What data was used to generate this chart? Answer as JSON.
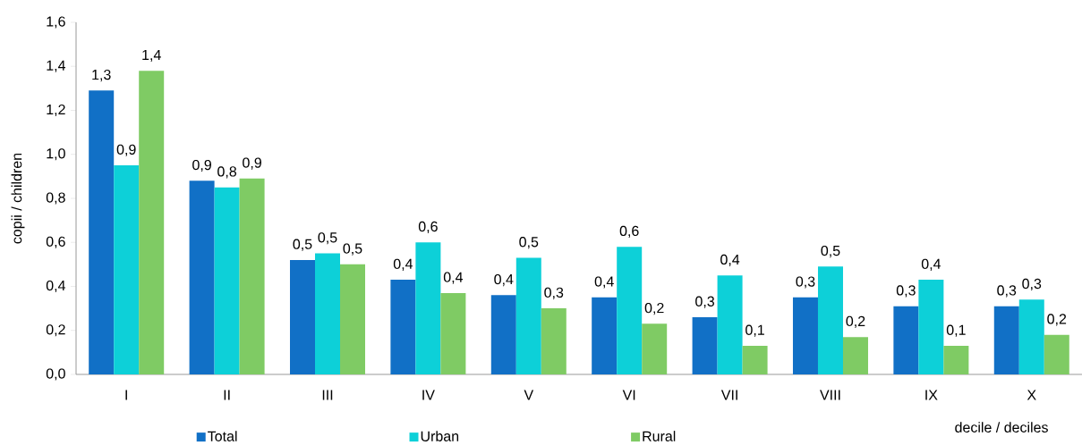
{
  "chart_data": {
    "type": "bar",
    "xlabel": "decile / deciles",
    "ylabel": "copii / children",
    "categories": [
      "I",
      "II",
      "III",
      "IV",
      "V",
      "VI",
      "VII",
      "VIII",
      "IX",
      "X"
    ],
    "series": [
      {
        "name": "Total",
        "color": "#1170c6",
        "values": [
          1.29,
          0.88,
          0.52,
          0.43,
          0.36,
          0.35,
          0.26,
          0.35,
          0.31,
          0.31
        ],
        "value_labels": [
          "1,3",
          "0,9",
          "0,5",
          "0,4",
          "0,4",
          "0,4",
          "0,3",
          "0,3",
          "0,3",
          "0,3"
        ]
      },
      {
        "name": "Urban",
        "color": "#0dd0d8",
        "values": [
          0.95,
          0.85,
          0.55,
          0.6,
          0.53,
          0.58,
          0.45,
          0.49,
          0.43,
          0.34
        ],
        "value_labels": [
          "0,9",
          "0,8",
          "0,5",
          "0,6",
          "0,5",
          "0,6",
          "0,4",
          "0,5",
          "0,4",
          "0,3"
        ]
      },
      {
        "name": "Rural",
        "color": "#7fcb64",
        "values": [
          1.38,
          0.89,
          0.5,
          0.37,
          0.3,
          0.23,
          0.13,
          0.17,
          0.13,
          0.18
        ],
        "value_labels": [
          "1,4",
          "0,9",
          "0,5",
          "0,4",
          "0,3",
          "0,2",
          "0,1",
          "0,2",
          "0,1",
          "0,2"
        ]
      }
    ],
    "ylim": [
      0,
      1.6
    ],
    "yticks": [
      {
        "value": 0,
        "label": "0,0"
      },
      {
        "value": 0.2,
        "label": "0,2"
      },
      {
        "value": 0.4,
        "label": "0,4"
      },
      {
        "value": 0.6,
        "label": "0,6"
      },
      {
        "value": 0.8,
        "label": "0,8"
      },
      {
        "value": 1.0,
        "label": "1,0"
      },
      {
        "value": 1.2,
        "label": "1,2"
      },
      {
        "value": 1.4,
        "label": "1,4"
      },
      {
        "value": 1.6,
        "label": "1,6"
      }
    ],
    "legend": "bottom"
  }
}
